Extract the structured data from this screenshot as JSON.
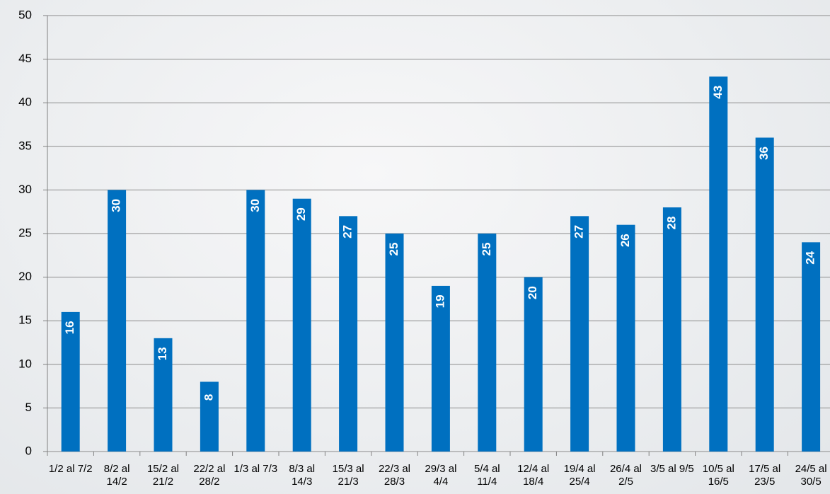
{
  "chart_data": {
    "type": "bar",
    "categories": [
      "1/2 al 7/2",
      "8/2 al 14/2",
      "15/2 al 21/2",
      "22/2 al 28/2",
      "1/3 al 7/3",
      "8/3 al 14/3",
      "15/3 al 21/3",
      "22/3 al 28/3",
      "29/3 al 4/4",
      "5/4 al 11/4",
      "12/4 al 18/4",
      "19/4 al 25/4",
      "26/4 al 2/5",
      "3/5 al 9/5",
      "10/5 al 16/5",
      "17/5 al 23/5",
      "24/5 al 30/5"
    ],
    "values": [
      16,
      30,
      13,
      8,
      30,
      29,
      27,
      25,
      19,
      25,
      20,
      27,
      26,
      28,
      43,
      36,
      24
    ],
    "color": "#0070c0",
    "ylim": [
      0,
      50
    ],
    "yticks": [
      0,
      5,
      10,
      15,
      20,
      25,
      30,
      35,
      40,
      45,
      50
    ],
    "grid": true
  }
}
